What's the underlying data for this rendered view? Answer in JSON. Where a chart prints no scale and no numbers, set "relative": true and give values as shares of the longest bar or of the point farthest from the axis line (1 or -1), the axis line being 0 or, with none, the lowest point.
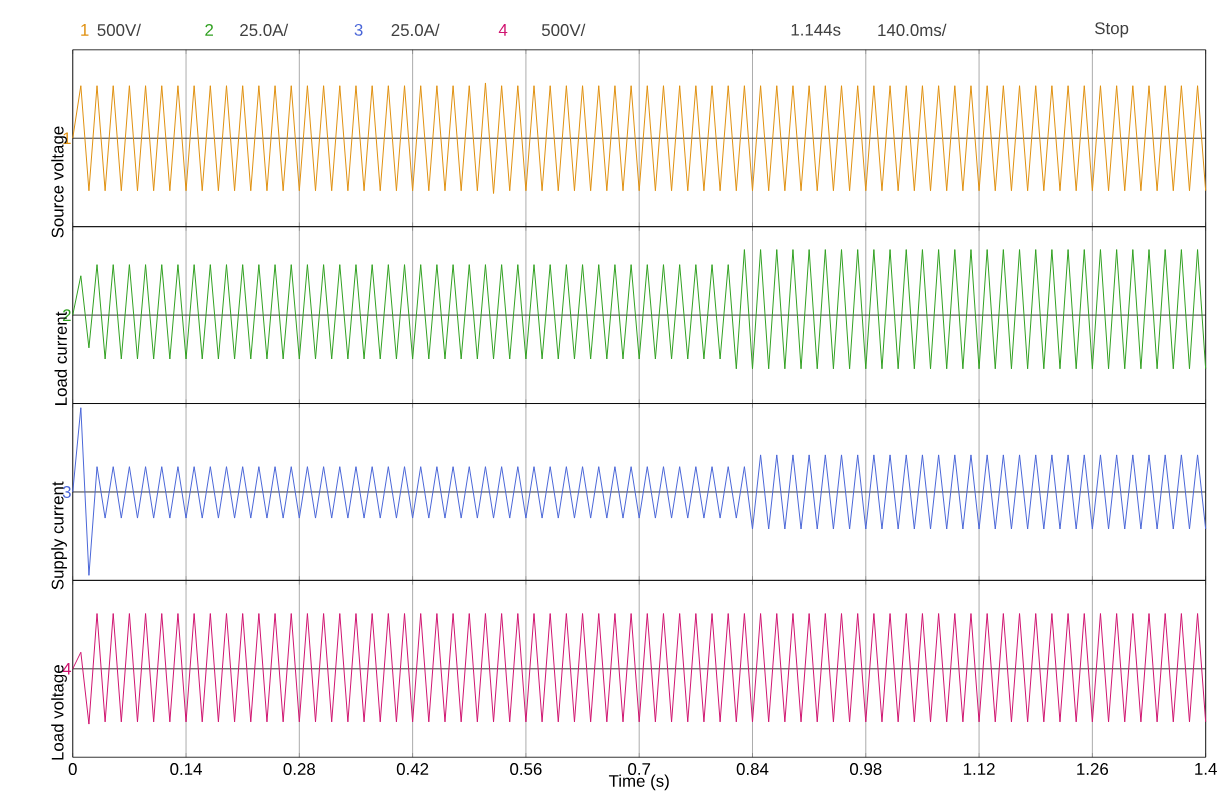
{
  "chart_data": [
    {
      "type": "line",
      "ylabel": "Source voltage",
      "color": "#e0900f",
      "relative": true,
      "grid": "x",
      "tick_labels": false,
      "annotations": [
        "1",
        "500V/",
        "2",
        "25.0A/",
        "3",
        "25.0A/",
        "4",
        "500V/",
        "1.144s",
        "140.0ms/",
        "Stop",
        "1"
      ],
      "xlim": [
        0,
        1.4
      ],
      "xticks": [
        0,
        0.14,
        0.28,
        0.42,
        0.56,
        0.7,
        0.84,
        0.98,
        1.12,
        1.26,
        1.4
      ],
      "x": [
        0,
        0.01,
        0.02,
        0.03,
        0.04,
        0.05,
        0.06,
        0.07,
        0.08,
        0.09,
        0.1,
        0.11,
        0.12,
        0.13,
        0.14,
        0.15,
        0.16,
        0.17,
        0.18,
        0.19,
        0.2,
        0.21,
        0.22,
        0.23,
        0.24,
        0.25,
        0.26,
        0.27,
        0.28,
        0.29,
        0.3,
        0.31,
        0.32,
        0.33,
        0.34,
        0.35,
        0.36,
        0.37,
        0.38,
        0.39,
        0.4,
        0.41,
        0.42,
        0.43,
        0.44,
        0.45,
        0.46,
        0.47,
        0.48,
        0.49,
        0.5,
        0.51,
        0.52,
        0.53,
        0.54,
        0.55,
        0.56,
        0.57,
        0.58,
        0.59,
        0.6,
        0.61,
        0.62,
        0.63,
        0.64,
        0.65,
        0.66,
        0.67,
        0.68,
        0.69,
        0.7,
        0.71,
        0.72,
        0.73,
        0.74,
        0.75,
        0.76,
        0.77,
        0.78,
        0.79,
        0.8,
        0.81,
        0.82,
        0.83,
        0.84,
        0.85,
        0.86,
        0.87,
        0.88,
        0.89,
        0.9,
        0.91,
        0.92,
        0.93,
        0.94,
        0.95,
        0.96,
        0.97,
        0.98,
        0.99,
        1,
        1.01,
        1.02,
        1.03,
        1.04,
        1.05,
        1.06,
        1.07,
        1.08,
        1.09,
        1.1,
        1.11,
        1.12,
        1.13,
        1.14,
        1.15,
        1.16,
        1.17,
        1.18,
        1.19,
        1.2,
        1.21,
        1.22,
        1.23,
        1.24,
        1.25,
        1.26,
        1.27,
        1.28,
        1.29,
        1.3,
        1.31,
        1.32,
        1.33,
        1.34,
        1.35,
        1.36,
        1.37,
        1.38,
        1.39,
        1.4
      ],
      "values": [
        0,
        0.95,
        -0.95,
        0.95,
        -0.95,
        0.95,
        -0.95,
        0.95,
        -0.95,
        0.95,
        -0.95,
        0.95,
        -0.95,
        0.95,
        -0.95,
        0.95,
        -0.95,
        0.95,
        -0.95,
        0.95,
        -0.95,
        0.95,
        -0.95,
        0.95,
        -0.95,
        0.95,
        -0.95,
        0.95,
        -0.95,
        0.95,
        -0.95,
        0.95,
        -0.95,
        0.95,
        -0.95,
        0.95,
        -0.95,
        0.95,
        -0.95,
        0.95,
        -0.95,
        0.95,
        -0.95,
        0.95,
        -0.95,
        0.95,
        -0.95,
        0.95,
        -0.95,
        0.95,
        -0.95,
        1,
        -1,
        0.95,
        -0.95,
        0.95,
        -0.95,
        0.95,
        -0.95,
        0.95,
        -0.95,
        0.95,
        -0.95,
        0.95,
        -0.95,
        0.95,
        -0.95,
        0.95,
        -0.95,
        0.95,
        -0.95,
        0.95,
        -0.95,
        0.95,
        -0.95,
        0.95,
        -0.95,
        0.95,
        -0.95,
        0.95,
        -0.95,
        0.95,
        -0.95,
        0.95,
        -0.95,
        0.95,
        -0.95,
        0.95,
        -0.95,
        0.95,
        -0.95,
        0.95,
        -0.95,
        0.95,
        -0.95,
        0.95,
        -0.95,
        0.95,
        -0.95,
        0.95,
        -0.95,
        0.95,
        -0.95,
        0.95,
        -0.95,
        0.95,
        -0.95,
        0.95,
        -0.95,
        0.95,
        -0.95,
        0.95,
        -0.95,
        0.95,
        -0.95,
        0.95,
        -0.95,
        0.95,
        -0.95,
        0.95,
        -0.95,
        0.95,
        -0.95,
        0.95,
        -0.95,
        0.95,
        -0.95,
        0.95,
        -0.95,
        0.95,
        -0.95,
        0.95,
        -0.95,
        0.95,
        -0.95,
        0.95,
        -0.95,
        0.95,
        -0.95,
        0.95,
        -0.95
      ]
    },
    {
      "type": "line",
      "ylabel": "Load current",
      "color": "#30a020",
      "relative": true,
      "grid": "x",
      "tick_labels": false,
      "annotations": [
        "2"
      ],
      "xlim": [
        0,
        1.4
      ],
      "xticks": [
        0,
        0.14,
        0.28,
        0.42,
        0.56,
        0.7,
        0.84,
        0.98,
        1.12,
        1.26,
        1.4
      ],
      "x": [
        0,
        0.01,
        0.02,
        0.03,
        0.04,
        0.05,
        0.06,
        0.07,
        0.08,
        0.09,
        0.1,
        0.11,
        0.12,
        0.13,
        0.14,
        0.15,
        0.16,
        0.17,
        0.18,
        0.19,
        0.2,
        0.21,
        0.22,
        0.23,
        0.24,
        0.25,
        0.26,
        0.27,
        0.28,
        0.29,
        0.3,
        0.31,
        0.32,
        0.33,
        0.34,
        0.35,
        0.36,
        0.37,
        0.38,
        0.39,
        0.4,
        0.41,
        0.42,
        0.43,
        0.44,
        0.45,
        0.46,
        0.47,
        0.48,
        0.49,
        0.5,
        0.51,
        0.52,
        0.53,
        0.54,
        0.55,
        0.56,
        0.57,
        0.58,
        0.59,
        0.6,
        0.61,
        0.62,
        0.63,
        0.64,
        0.65,
        0.66,
        0.67,
        0.68,
        0.69,
        0.7,
        0.71,
        0.72,
        0.73,
        0.74,
        0.75,
        0.76,
        0.77,
        0.78,
        0.79,
        0.8,
        0.81,
        0.82,
        0.83,
        0.84,
        0.85,
        0.86,
        0.87,
        0.88,
        0.89,
        0.9,
        0.91,
        0.92,
        0.93,
        0.94,
        0.95,
        0.96,
        0.97,
        0.98,
        0.99,
        1,
        1.01,
        1.02,
        1.03,
        1.04,
        1.05,
        1.06,
        1.07,
        1.08,
        1.09,
        1.1,
        1.11,
        1.12,
        1.13,
        1.14,
        1.15,
        1.16,
        1.17,
        1.18,
        1.19,
        1.2,
        1.21,
        1.22,
        1.23,
        1.24,
        1.25,
        1.26,
        1.27,
        1.28,
        1.29,
        1.3,
        1.31,
        1.32,
        1.33,
        1.34,
        1.35,
        1.36,
        1.37,
        1.38,
        1.39,
        1.4
      ],
      "values": [
        0,
        0.6,
        -0.5,
        0.77,
        -0.67,
        0.77,
        -0.67,
        0.77,
        -0.67,
        0.77,
        -0.67,
        0.77,
        -0.67,
        0.77,
        -0.67,
        0.77,
        -0.67,
        0.77,
        -0.67,
        0.77,
        -0.67,
        0.77,
        -0.67,
        0.77,
        -0.67,
        0.77,
        -0.67,
        0.77,
        -0.67,
        0.77,
        -0.67,
        0.77,
        -0.67,
        0.77,
        -0.67,
        0.77,
        -0.67,
        0.77,
        -0.67,
        0.77,
        -0.67,
        0.77,
        -0.67,
        0.77,
        -0.67,
        0.77,
        -0.67,
        0.77,
        -0.67,
        0.77,
        -0.67,
        0.77,
        -0.67,
        0.77,
        -0.67,
        0.77,
        -0.67,
        0.77,
        -0.67,
        0.77,
        -0.67,
        0.77,
        -0.67,
        0.77,
        -0.67,
        0.77,
        -0.67,
        0.77,
        -0.67,
        0.77,
        -0.67,
        0.77,
        -0.67,
        0.77,
        -0.67,
        0.77,
        -0.67,
        0.77,
        -0.67,
        0.77,
        -0.67,
        0.77,
        -0.82,
        1,
        -0.82,
        1,
        -0.82,
        1,
        -0.82,
        1,
        -0.82,
        1,
        -0.82,
        1,
        -0.82,
        1,
        -0.82,
        1,
        -0.82,
        1,
        -0.82,
        1,
        -0.82,
        1,
        -0.82,
        1,
        -0.82,
        1,
        -0.82,
        1,
        -0.82,
        1,
        -0.82,
        1,
        -0.82,
        1,
        -0.82,
        1,
        -0.82,
        1,
        -0.82,
        1,
        -0.82,
        1,
        -0.82,
        1,
        -0.82,
        1,
        -0.82,
        1,
        -0.82,
        1,
        -0.82,
        1,
        -0.82,
        1,
        -0.82,
        1,
        -0.82,
        1,
        -0.82
      ]
    },
    {
      "type": "line",
      "ylabel": "Supply current",
      "color": "#4a66d8",
      "relative": true,
      "grid": "x",
      "tick_labels": false,
      "annotations": [
        "3"
      ],
      "xlim": [
        0,
        1.4
      ],
      "xticks": [
        0,
        0.14,
        0.28,
        0.42,
        0.56,
        0.7,
        0.84,
        0.98,
        1.12,
        1.26,
        1.4
      ],
      "x": [
        0,
        0.01,
        0.02,
        0.03,
        0.04,
        0.05,
        0.06,
        0.07,
        0.08,
        0.09,
        0.1,
        0.11,
        0.12,
        0.13,
        0.14,
        0.15,
        0.16,
        0.17,
        0.18,
        0.19,
        0.2,
        0.21,
        0.22,
        0.23,
        0.24,
        0.25,
        0.26,
        0.27,
        0.28,
        0.29,
        0.3,
        0.31,
        0.32,
        0.33,
        0.34,
        0.35,
        0.36,
        0.37,
        0.38,
        0.39,
        0.4,
        0.41,
        0.42,
        0.43,
        0.44,
        0.45,
        0.46,
        0.47,
        0.48,
        0.49,
        0.5,
        0.51,
        0.52,
        0.53,
        0.54,
        0.55,
        0.56,
        0.57,
        0.58,
        0.59,
        0.6,
        0.61,
        0.62,
        0.63,
        0.64,
        0.65,
        0.66,
        0.67,
        0.68,
        0.69,
        0.7,
        0.71,
        0.72,
        0.73,
        0.74,
        0.75,
        0.76,
        0.77,
        0.78,
        0.79,
        0.8,
        0.81,
        0.82,
        0.83,
        0.84,
        0.85,
        0.86,
        0.87,
        0.88,
        0.89,
        0.9,
        0.91,
        0.92,
        0.93,
        0.94,
        0.95,
        0.96,
        0.97,
        0.98,
        0.99,
        1,
        1.01,
        1.02,
        1.03,
        1.04,
        1.05,
        1.06,
        1.07,
        1.08,
        1.09,
        1.1,
        1.11,
        1.12,
        1.13,
        1.14,
        1.15,
        1.16,
        1.17,
        1.18,
        1.19,
        1.2,
        1.21,
        1.22,
        1.23,
        1.24,
        1.25,
        1.26,
        1.27,
        1.28,
        1.29,
        1.3,
        1.31,
        1.32,
        1.33,
        1.34,
        1.35,
        1.36,
        1.37,
        1.38,
        1.39,
        1.4
      ],
      "values": [
        0,
        1,
        -0.99,
        0.3,
        -0.31,
        0.3,
        -0.31,
        0.3,
        -0.31,
        0.3,
        -0.31,
        0.3,
        -0.31,
        0.3,
        -0.31,
        0.3,
        -0.31,
        0.3,
        -0.31,
        0.3,
        -0.31,
        0.3,
        -0.31,
        0.3,
        -0.31,
        0.3,
        -0.31,
        0.3,
        -0.31,
        0.3,
        -0.31,
        0.3,
        -0.31,
        0.3,
        -0.31,
        0.3,
        -0.31,
        0.3,
        -0.31,
        0.3,
        -0.31,
        0.3,
        -0.31,
        0.3,
        -0.31,
        0.3,
        -0.31,
        0.3,
        -0.31,
        0.3,
        -0.31,
        0.3,
        -0.31,
        0.3,
        -0.31,
        0.3,
        -0.31,
        0.3,
        -0.31,
        0.3,
        -0.31,
        0.3,
        -0.31,
        0.3,
        -0.31,
        0.3,
        -0.31,
        0.3,
        -0.31,
        0.3,
        -0.31,
        0.3,
        -0.31,
        0.3,
        -0.31,
        0.3,
        -0.31,
        0.3,
        -0.31,
        0.3,
        -0.31,
        0.3,
        -0.31,
        0.3,
        -0.44,
        0.44,
        -0.44,
        0.44,
        -0.44,
        0.44,
        -0.44,
        0.44,
        -0.44,
        0.44,
        -0.44,
        0.44,
        -0.44,
        0.44,
        -0.44,
        0.44,
        -0.44,
        0.44,
        -0.44,
        0.44,
        -0.44,
        0.44,
        -0.44,
        0.44,
        -0.44,
        0.44,
        -0.44,
        0.44,
        -0.44,
        0.44,
        -0.44,
        0.44,
        -0.44,
        0.44,
        -0.44,
        0.44,
        -0.44,
        0.44,
        -0.44,
        0.44,
        -0.44,
        0.44,
        -0.44,
        0.44,
        -0.44,
        0.44,
        -0.44,
        0.44,
        -0.44,
        0.44,
        -0.44,
        0.44,
        -0.44,
        0.44,
        -0.44,
        0.44,
        -0.44
      ]
    },
    {
      "type": "line",
      "ylabel": "Load voltage",
      "xlabel": "Time (s)",
      "color": "#d01470",
      "relative": true,
      "grid": "x",
      "annotations": [
        "4"
      ],
      "xlim": [
        0,
        1.4
      ],
      "xticks": [
        0,
        0.14,
        0.28,
        0.42,
        0.56,
        0.7,
        0.84,
        0.98,
        1.12,
        1.26,
        1.4
      ],
      "x": [
        0,
        0.01,
        0.02,
        0.03,
        0.04,
        0.05,
        0.06,
        0.07,
        0.08,
        0.09,
        0.1,
        0.11,
        0.12,
        0.13,
        0.14,
        0.15,
        0.16,
        0.17,
        0.18,
        0.19,
        0.2,
        0.21,
        0.22,
        0.23,
        0.24,
        0.25,
        0.26,
        0.27,
        0.28,
        0.29,
        0.3,
        0.31,
        0.32,
        0.33,
        0.34,
        0.35,
        0.36,
        0.37,
        0.38,
        0.39,
        0.4,
        0.41,
        0.42,
        0.43,
        0.44,
        0.45,
        0.46,
        0.47,
        0.48,
        0.49,
        0.5,
        0.51,
        0.52,
        0.53,
        0.54,
        0.55,
        0.56,
        0.57,
        0.58,
        0.59,
        0.6,
        0.61,
        0.62,
        0.63,
        0.64,
        0.65,
        0.66,
        0.67,
        0.68,
        0.69,
        0.7,
        0.71,
        0.72,
        0.73,
        0.74,
        0.75,
        0.76,
        0.77,
        0.78,
        0.79,
        0.8,
        0.81,
        0.82,
        0.83,
        0.84,
        0.85,
        0.86,
        0.87,
        0.88,
        0.89,
        0.9,
        0.91,
        0.92,
        0.93,
        0.94,
        0.95,
        0.96,
        0.97,
        0.98,
        0.99,
        1,
        1.01,
        1.02,
        1.03,
        1.04,
        1.05,
        1.06,
        1.07,
        1.08,
        1.09,
        1.1,
        1.11,
        1.12,
        1.13,
        1.14,
        1.15,
        1.16,
        1.17,
        1.18,
        1.19,
        1.2,
        1.21,
        1.22,
        1.23,
        1.24,
        1.25,
        1.26,
        1.27,
        1.28,
        1.29,
        1.3,
        1.31,
        1.32,
        1.33,
        1.34,
        1.35,
        1.36,
        1.37,
        1.38,
        1.39,
        1.4
      ],
      "values": [
        0,
        0.3,
        -1,
        1,
        -0.96,
        1,
        -0.96,
        1,
        -0.96,
        1,
        -0.96,
        1,
        -0.96,
        1,
        -0.96,
        1,
        -0.96,
        1,
        -0.96,
        1,
        -0.96,
        1,
        -0.96,
        1,
        -0.96,
        1,
        -0.96,
        1,
        -0.96,
        1,
        -0.96,
        1,
        -0.96,
        1,
        -0.96,
        1,
        -0.96,
        1,
        -0.96,
        1,
        -0.96,
        1,
        -0.96,
        1,
        -0.96,
        1,
        -0.96,
        1,
        -0.96,
        1,
        -0.96,
        1,
        -0.96,
        1,
        -0.96,
        1,
        -0.96,
        1,
        -0.96,
        1,
        -0.96,
        1,
        -0.96,
        1,
        -0.96,
        1,
        -0.96,
        1,
        -0.96,
        1,
        -0.96,
        1,
        -0.96,
        1,
        -0.96,
        1,
        -0.96,
        1,
        -0.96,
        1,
        -0.96,
        1,
        -0.96,
        1,
        -0.96,
        1,
        -0.96,
        1,
        -0.96,
        1,
        -0.96,
        1,
        -0.96,
        1,
        -0.96,
        1,
        -0.96,
        1,
        -0.96,
        1,
        -0.96,
        1,
        -0.96,
        1,
        -0.96,
        1,
        -0.96,
        1,
        -0.96,
        1,
        -0.96,
        1,
        -0.96,
        1,
        -0.96,
        1,
        -0.96,
        1,
        -0.96,
        1,
        -0.96,
        1,
        -0.96,
        1,
        -0.96,
        1,
        -0.96,
        1,
        -0.96,
        1,
        -0.96,
        1,
        -0.96,
        1,
        -0.96,
        1,
        -0.96,
        1,
        -0.96,
        1,
        -0.96
      ]
    }
  ]
}
